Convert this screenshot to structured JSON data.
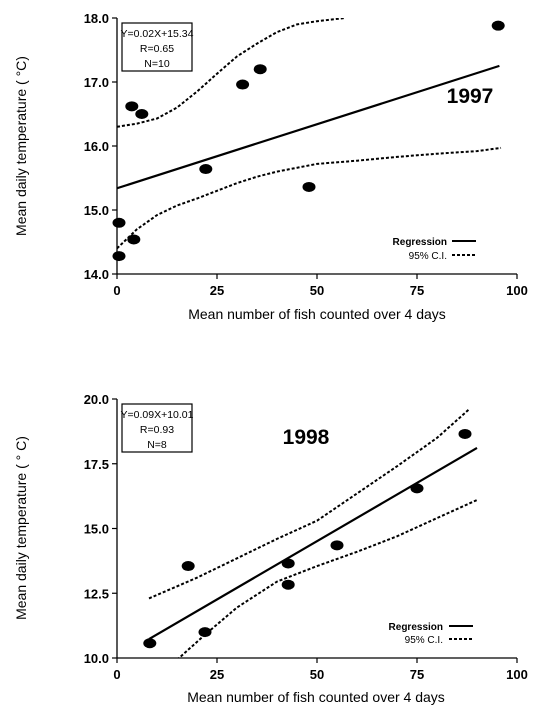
{
  "chart_data": [
    {
      "type": "scatter",
      "year_label": "1997",
      "equation": "Y=0.02X+15.34",
      "r_label": "R=0.65",
      "n_label": "N=10",
      "xlabel": "Mean number of fish counted over 4 days",
      "ylabel": "Mean daily temperature ( °C)",
      "xlim": [
        0,
        100
      ],
      "ylim": [
        14.0,
        18.0
      ],
      "xticks": [
        "0",
        "25",
        "50",
        "75",
        "100"
      ],
      "yticks": [
        "14.0",
        "15.0",
        "16.0",
        "17.0",
        "18.0"
      ],
      "points": [
        {
          "x": 0.5,
          "y": 14.28
        },
        {
          "x": 0.5,
          "y": 14.8
        },
        {
          "x": 3.7,
          "y": 16.62
        },
        {
          "x": 4.2,
          "y": 14.54
        },
        {
          "x": 6.2,
          "y": 16.5
        },
        {
          "x": 22.2,
          "y": 15.64
        },
        {
          "x": 31.4,
          "y": 16.96
        },
        {
          "x": 35.8,
          "y": 17.2
        },
        {
          "x": 48.0,
          "y": 15.36
        },
        {
          "x": 95.3,
          "y": 17.88
        }
      ],
      "regression": {
        "slope": 0.02,
        "intercept": 15.34,
        "x_range": [
          0,
          95.6
        ]
      },
      "ci_upper": [
        [
          0,
          16.3
        ],
        [
          5,
          16.35
        ],
        [
          10,
          16.43
        ],
        [
          15,
          16.6
        ],
        [
          20,
          16.85
        ],
        [
          25,
          17.13
        ],
        [
          30,
          17.4
        ],
        [
          35,
          17.6
        ],
        [
          40,
          17.78
        ],
        [
          45,
          17.9
        ],
        [
          50,
          17.95
        ],
        [
          57,
          18.0
        ]
      ],
      "ci_lower": [
        [
          0,
          14.4
        ],
        [
          5,
          14.7
        ],
        [
          10,
          14.92
        ],
        [
          15,
          15.07
        ],
        [
          20,
          15.18
        ],
        [
          25,
          15.3
        ],
        [
          30,
          15.42
        ],
        [
          35,
          15.52
        ],
        [
          40,
          15.6
        ],
        [
          50,
          15.72
        ],
        [
          60,
          15.77
        ],
        [
          70,
          15.83
        ],
        [
          80,
          15.88
        ],
        [
          90,
          15.92
        ],
        [
          96,
          15.97
        ]
      ],
      "legend": {
        "regression": "Regression",
        "ci": "95% C.I."
      }
    },
    {
      "type": "scatter",
      "year_label": "1998",
      "equation": "Y=0.09X+10.01",
      "r_label": "R=0.93",
      "n_label": "N=8",
      "xlabel": "Mean number of fish counted over 4 days",
      "ylabel": "Mean daily temperature ( ° C)",
      "xlim": [
        0,
        100
      ],
      "ylim": [
        10.0,
        20.0
      ],
      "xticks": [
        "0",
        "25",
        "50",
        "75",
        "100"
      ],
      "yticks": [
        "10.0",
        "12.5",
        "15.0",
        "17.5",
        "20.0"
      ],
      "points": [
        {
          "x": 8.2,
          "y": 10.57
        },
        {
          "x": 17.8,
          "y": 13.55
        },
        {
          "x": 22.0,
          "y": 11.0
        },
        {
          "x": 42.8,
          "y": 13.65
        },
        {
          "x": 42.8,
          "y": 12.83
        },
        {
          "x": 55.0,
          "y": 14.35
        },
        {
          "x": 75.0,
          "y": 16.55
        },
        {
          "x": 87.0,
          "y": 18.65
        }
      ],
      "regression": {
        "slope": 0.09,
        "intercept": 10.01,
        "x_range": [
          8,
          90
        ]
      },
      "ci_upper": [
        [
          8,
          12.3
        ],
        [
          20,
          13.1
        ],
        [
          30,
          13.85
        ],
        [
          40,
          14.6
        ],
        [
          50,
          15.3
        ],
        [
          60,
          16.35
        ],
        [
          70,
          17.4
        ],
        [
          80,
          18.5
        ],
        [
          88,
          19.6
        ]
      ],
      "ci_lower": [
        [
          15,
          9.93
        ],
        [
          22,
          10.9
        ],
        [
          30,
          11.95
        ],
        [
          40,
          12.95
        ],
        [
          50,
          13.55
        ],
        [
          60,
          14.1
        ],
        [
          70,
          14.7
        ],
        [
          80,
          15.4
        ],
        [
          90,
          16.1
        ]
      ],
      "legend": {
        "regression": "Regression",
        "ci": "95% C.I."
      }
    }
  ]
}
